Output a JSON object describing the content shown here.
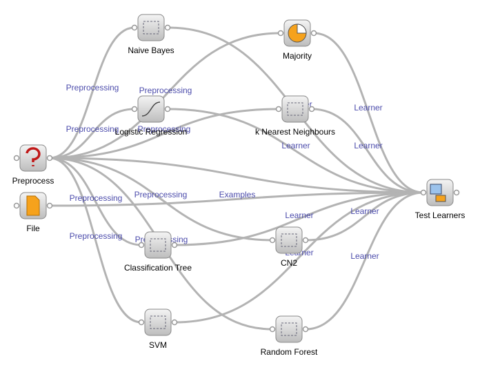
{
  "nodes": [
    {
      "label": "Naive Bayes"
    },
    {
      "label": "Majority"
    },
    {
      "label": "Logistic Regression"
    },
    {
      "label": "k Nearest Neighbours"
    },
    {
      "label": "Preprocess"
    },
    {
      "label": "File"
    },
    {
      "label": "Test Learners"
    },
    {
      "label": "Classification Tree"
    },
    {
      "label": "CN2"
    },
    {
      "label": "SVM"
    },
    {
      "label": "Random Forest"
    }
  ],
  "edge_labels": [
    "Preprocessing",
    "Preprocessing",
    "Preprocessing",
    "Preprocessing",
    "Preprocessing",
    "Preprocessing",
    "Preprocessing",
    "Preprocessing",
    "Examples",
    "Learner",
    "Learner",
    "Learner",
    "Learner",
    "Learner",
    "Learner",
    "Learner",
    "Learner"
  ]
}
